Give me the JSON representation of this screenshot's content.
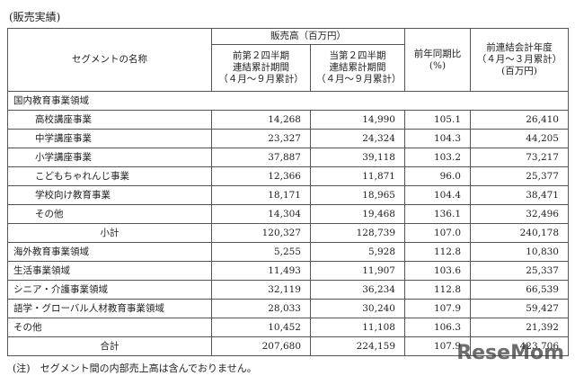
{
  "title": "(販売実績)",
  "table": {
    "header": {
      "segment": "セグメントの名称",
      "sales": "販売高（百万円）",
      "prev_period": [
        "前第２四半期",
        "連結累計期間",
        "（４月～９月累計）"
      ],
      "curr_period": [
        "当第２四半期",
        "連結累計期間",
        "（４月～９月累計）"
      ],
      "yoy": [
        "前年同期比",
        "(%)"
      ],
      "prev_year": [
        "前連結会計年度",
        "（４月～３月累計）",
        "(百万円)"
      ]
    },
    "rows": [
      [
        "国内教育事業領域"
      ],
      [
        "高校講座事業",
        "14,268",
        "14,990",
        "105.1",
        "26,410"
      ],
      [
        "中学講座事業",
        "23,327",
        "24,324",
        "104.3",
        "44,205"
      ],
      [
        "小学講座事業",
        "37,887",
        "39,118",
        "103.2",
        "73,217"
      ],
      [
        "こどもちゃれんじ事業",
        "12,366",
        "11,871",
        "96.0",
        "25,377"
      ],
      [
        "学校向け教育事業",
        "18,171",
        "18,965",
        "104.4",
        "38,471"
      ],
      [
        "その他",
        "14,304",
        "19,468",
        "136.1",
        "32,496"
      ],
      [
        "小計",
        "120,327",
        "128,739",
        "107.0",
        "240,178"
      ],
      [
        "海外教育事業領域",
        "5,255",
        "5,928",
        "112.8",
        "10,830"
      ],
      [
        "生活事業領域",
        "11,493",
        "11,907",
        "103.6",
        "25,337"
      ],
      [
        "シニア・介護事業領域",
        "32,119",
        "36,234",
        "112.8",
        "66,539"
      ],
      [
        "語学・グローバル人材教育事業領域",
        "28,033",
        "30,240",
        "107.9",
        "59,427"
      ],
      [
        "その他",
        "10,452",
        "11,108",
        "106.3",
        "21,392"
      ],
      [
        "合計",
        "207,680",
        "224,159",
        "107.9",
        "423,706"
      ]
    ]
  },
  "note": "(注)　セグメント間の内部売上高は含んでおりません。",
  "watermark": "ReseMom"
}
